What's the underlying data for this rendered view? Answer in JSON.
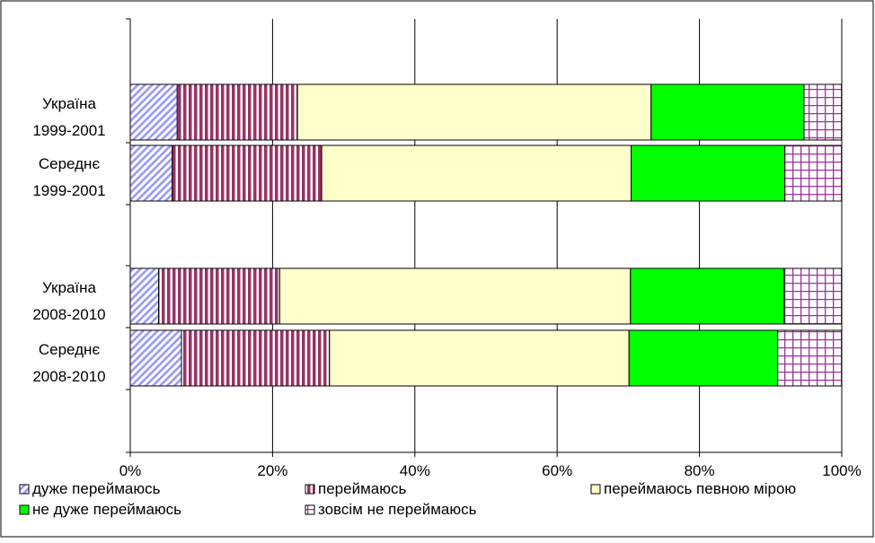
{
  "chart_data": {
    "type": "bar",
    "orientation": "horizontal",
    "stacked": "percent",
    "categories": [
      [
        "Україна",
        "1999-2001"
      ],
      [
        "Середнє",
        "1999-2001"
      ],
      [
        "Україна",
        "2008-2010"
      ],
      [
        "Середнє",
        "2008-2010"
      ]
    ],
    "series": [
      {
        "name": "дуже переймаюсь",
        "color": "#9999ff",
        "pattern": "diagonal",
        "values": [
          6.6,
          5.9,
          4.0,
          7.2
        ]
      },
      {
        "name": "переймаюсь",
        "color": "#993366",
        "pattern": "vertical",
        "values": [
          16.9,
          21.0,
          17.0,
          20.8
        ]
      },
      {
        "name": "переймаюсь певною мірою",
        "color": "#ffffcc",
        "pattern": "solid",
        "values": [
          49.7,
          43.5,
          49.3,
          42.1
        ]
      },
      {
        "name": "не дуже переймаюсь",
        "color": "#00ff00",
        "pattern": "solid",
        "values": [
          21.5,
          21.6,
          21.6,
          20.9
        ]
      },
      {
        "name": "зовсім не переймаюсь",
        "color": "#993399",
        "pattern": "grid",
        "values": [
          5.3,
          8.0,
          8.1,
          9.0
        ]
      }
    ],
    "xaxis": {
      "ticks": [
        "0%",
        "20%",
        "40%",
        "60%",
        "80%",
        "100%"
      ],
      "range": [
        0,
        100
      ]
    },
    "grid": true,
    "legend": "bottom"
  }
}
